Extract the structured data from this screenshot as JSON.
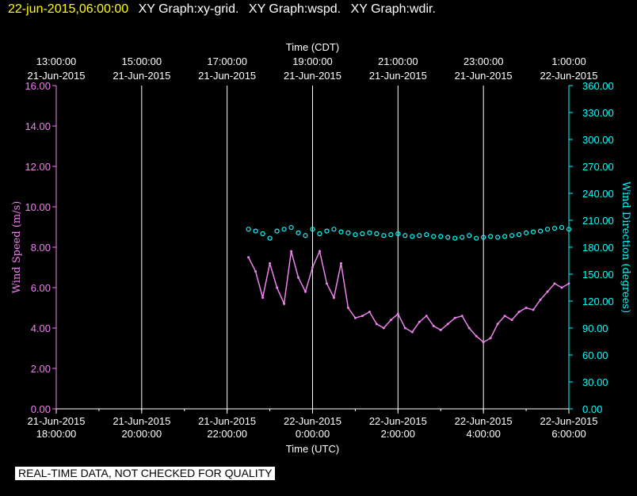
{
  "header": {
    "timestamp": "22-jun-2015,06:00:00",
    "titles": [
      "XY Graph:xy-grid.",
      "XY Graph:wspd.",
      "XY Graph:wdir."
    ]
  },
  "disclaimer": "REAL-TIME DATA, NOT CHECKED FOR QUALITY",
  "colors": {
    "background": "#000000",
    "wspd": "#ee82ee",
    "wdir": "#00ffff",
    "grid": "#ffffff",
    "timestamp": "#ffff00"
  },
  "chart_data": {
    "type": "scatter",
    "top_axis": {
      "label": "Time (CDT)",
      "ticks": [
        [
          "13:00:00",
          "21-Jun-2015"
        ],
        [
          "15:00:00",
          "21-Jun-2015"
        ],
        [
          "17:00:00",
          "21-Jun-2015"
        ],
        [
          "19:00:00",
          "21-Jun-2015"
        ],
        [
          "21:00:00",
          "21-Jun-2015"
        ],
        [
          "23:00:00",
          "21-Jun-2015"
        ],
        [
          "1:00:00",
          "22-Jun-2015"
        ]
      ]
    },
    "bottom_axis": {
      "label": "Time (UTC)",
      "ticks": [
        [
          "21-Jun-2015",
          "18:00:00"
        ],
        [
          "21-Jun-2015",
          "20:00:00"
        ],
        [
          "21-Jun-2015",
          "22:00:00"
        ],
        [
          "22-Jun-2015",
          "0:00:00"
        ],
        [
          "22-Jun-2015",
          "2:00:00"
        ],
        [
          "22-Jun-2015",
          "4:00:00"
        ],
        [
          "22-Jun-2015",
          "6:00:00"
        ]
      ],
      "xlim": [
        "2015-06-21 18:00 UTC",
        "2015-06-22 06:00 UTC"
      ]
    },
    "left_axis": {
      "label": "Wind Speed (m/s)",
      "ticks": [
        "0.00",
        "2.00",
        "4.00",
        "6.00",
        "8.00",
        "10.00",
        "12.00",
        "14.00",
        "16.00"
      ],
      "ylim": [
        0,
        16
      ]
    },
    "right_axis": {
      "label": "Wind Direction (degrees)",
      "ticks": [
        "0.00",
        "30.00",
        "60.00",
        "90.00",
        "120.00",
        "150.00",
        "180.00",
        "210.00",
        "240.00",
        "270.00",
        "300.00",
        "330.00",
        "360.00"
      ],
      "ylim": [
        0,
        360
      ]
    },
    "grid": true,
    "series": [
      {
        "key": "wspd",
        "style": "line",
        "x_utc": [
          "22:30",
          "22:40",
          "22:50",
          "23:00",
          "23:10",
          "23:20",
          "23:30",
          "23:40",
          "23:50",
          "00:00",
          "00:10",
          "00:20",
          "00:30",
          "00:40",
          "00:50",
          "01:00",
          "01:10",
          "01:20",
          "01:30",
          "01:40",
          "01:50",
          "02:00",
          "02:10",
          "02:20",
          "02:30",
          "02:40",
          "02:50",
          "03:00",
          "03:10",
          "03:20",
          "03:30",
          "03:40",
          "03:50",
          "04:00",
          "04:10",
          "04:20",
          "04:30",
          "04:40",
          "04:50",
          "05:00",
          "05:10",
          "05:20",
          "05:30",
          "05:40",
          "05:50",
          "06:00"
        ],
        "values": [
          7.5,
          6.8,
          5.5,
          7.2,
          6.0,
          5.2,
          7.8,
          6.5,
          5.8,
          7.0,
          7.8,
          6.2,
          5.5,
          7.2,
          5.0,
          4.5,
          4.6,
          4.8,
          4.2,
          4.0,
          4.4,
          4.7,
          4.0,
          3.8,
          4.3,
          4.6,
          4.1,
          3.9,
          4.2,
          4.5,
          4.6,
          4.0,
          3.6,
          3.3,
          3.5,
          4.2,
          4.6,
          4.4,
          4.8,
          5.0,
          4.9,
          5.4,
          5.8,
          6.2,
          6.0,
          6.2
        ]
      },
      {
        "key": "wdir",
        "style": "markers",
        "x_utc": [
          "22:30",
          "22:40",
          "22:50",
          "23:00",
          "23:10",
          "23:20",
          "23:30",
          "23:40",
          "23:50",
          "00:00",
          "00:10",
          "00:20",
          "00:30",
          "00:40",
          "00:50",
          "01:00",
          "01:10",
          "01:20",
          "01:30",
          "01:40",
          "01:50",
          "02:00",
          "02:10",
          "02:20",
          "02:30",
          "02:40",
          "02:50",
          "03:00",
          "03:10",
          "03:20",
          "03:30",
          "03:40",
          "03:50",
          "04:00",
          "04:10",
          "04:20",
          "04:30",
          "04:40",
          "04:50",
          "05:00",
          "05:10",
          "05:20",
          "05:30",
          "05:40",
          "05:50",
          "06:00"
        ],
        "values": [
          200,
          198,
          195,
          190,
          198,
          200,
          202,
          196,
          193,
          200,
          195,
          198,
          200,
          197,
          196,
          194,
          195,
          196,
          195,
          193,
          194,
          195,
          193,
          192,
          193,
          194,
          192,
          192,
          191,
          190,
          191,
          193,
          190,
          191,
          192,
          191,
          192,
          193,
          194,
          196,
          197,
          198,
          200,
          201,
          202,
          200
        ]
      }
    ]
  }
}
